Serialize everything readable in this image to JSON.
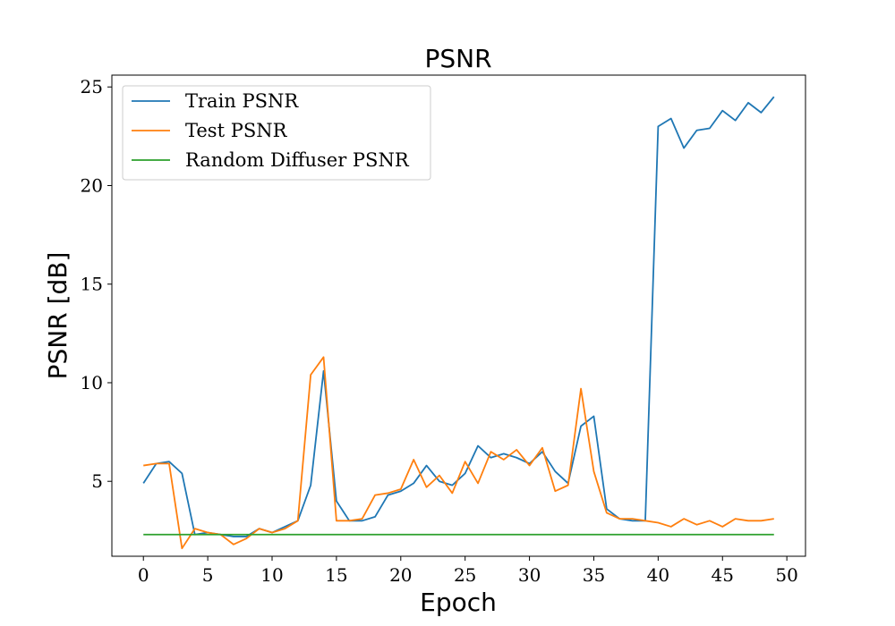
{
  "chart_data": {
    "type": "line",
    "title": "PSNR",
    "xlabel": "Epoch",
    "ylabel": "PSNR [dB]",
    "xlim": [
      -2.45,
      51.45
    ],
    "ylim": [
      1.2,
      25.6
    ],
    "xticks": [
      0,
      5,
      10,
      15,
      20,
      25,
      30,
      35,
      40,
      45,
      50
    ],
    "yticks": [
      5,
      10,
      15,
      20,
      25
    ],
    "legend_position": "top-left",
    "grid": false,
    "x": [
      0,
      1,
      2,
      3,
      4,
      5,
      6,
      7,
      8,
      9,
      10,
      11,
      12,
      13,
      14,
      15,
      16,
      17,
      18,
      19,
      20,
      21,
      22,
      23,
      24,
      25,
      26,
      27,
      28,
      29,
      30,
      31,
      32,
      33,
      34,
      35,
      36,
      37,
      38,
      39,
      40,
      41,
      42,
      43,
      44,
      45,
      46,
      47,
      48,
      49
    ],
    "series": [
      {
        "name": "Train PSNR",
        "color": "#1f77b4",
        "values": [
          4.9,
          5.9,
          6.0,
          5.4,
          2.3,
          2.4,
          2.3,
          2.2,
          2.2,
          2.6,
          2.4,
          2.7,
          3.0,
          4.8,
          10.6,
          4.0,
          3.0,
          3.0,
          3.2,
          4.3,
          4.5,
          4.9,
          5.8,
          5.0,
          4.8,
          5.4,
          6.8,
          6.2,
          6.4,
          6.2,
          5.9,
          6.5,
          5.5,
          4.9,
          7.8,
          8.3,
          3.6,
          3.1,
          3.0,
          3.0,
          23.0,
          23.4,
          21.9,
          22.8,
          22.9,
          23.8,
          23.3,
          24.2,
          23.7,
          24.5
        ]
      },
      {
        "name": "Test PSNR",
        "color": "#ff7f0e",
        "values": [
          5.8,
          5.9,
          5.9,
          1.6,
          2.6,
          2.4,
          2.3,
          1.8,
          2.1,
          2.6,
          2.4,
          2.6,
          3.0,
          10.4,
          11.3,
          3.0,
          3.0,
          3.1,
          4.3,
          4.4,
          4.6,
          6.1,
          4.7,
          5.3,
          4.4,
          6.0,
          4.9,
          6.5,
          6.1,
          6.6,
          5.8,
          6.7,
          4.5,
          4.8,
          9.7,
          5.5,
          3.4,
          3.1,
          3.1,
          3.0,
          2.9,
          2.7,
          3.1,
          2.8,
          3.0,
          2.7,
          3.1,
          3.0,
          3.0,
          3.1
        ]
      },
      {
        "name": "Random Diffuser PSNR",
        "color": "#2ca02c",
        "values": [
          2.3,
          2.3,
          2.3,
          2.3,
          2.3,
          2.3,
          2.3,
          2.3,
          2.3,
          2.3,
          2.3,
          2.3,
          2.3,
          2.3,
          2.3,
          2.3,
          2.3,
          2.3,
          2.3,
          2.3,
          2.3,
          2.3,
          2.3,
          2.3,
          2.3,
          2.3,
          2.3,
          2.3,
          2.3,
          2.3,
          2.3,
          2.3,
          2.3,
          2.3,
          2.3,
          2.3,
          2.3,
          2.3,
          2.3,
          2.3,
          2.3,
          2.3,
          2.3,
          2.3,
          2.3,
          2.3,
          2.3,
          2.3,
          2.3,
          2.3
        ]
      }
    ]
  }
}
